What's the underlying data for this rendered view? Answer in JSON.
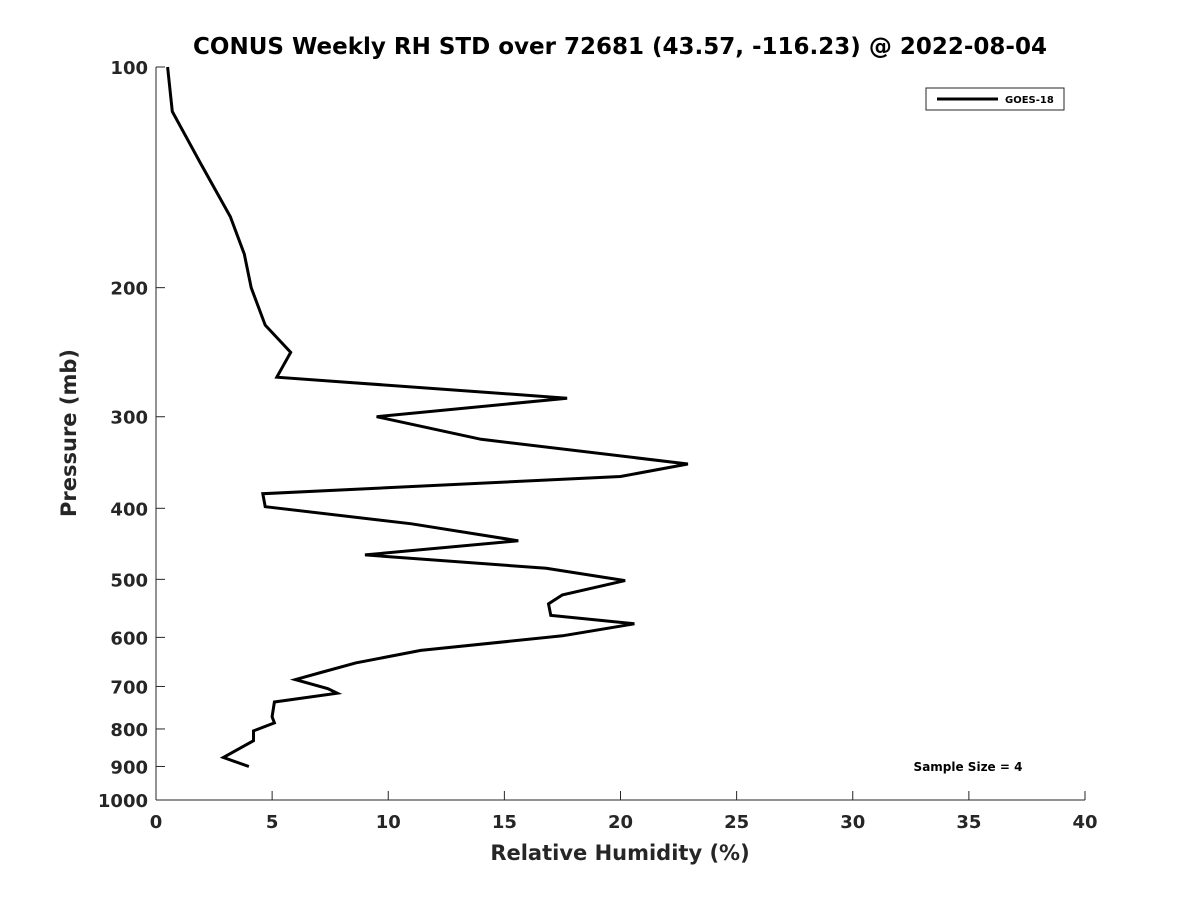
{
  "chart_data": {
    "type": "line",
    "title": "CONUS Weekly RH STD over 72681 (43.57, -116.23) @ 2022-08-04",
    "xlabel": "Relative Humidity (%)",
    "ylabel": "Pressure (mb)",
    "xlim": [
      0,
      40
    ],
    "ylim": [
      100,
      1000
    ],
    "y_scale": "log",
    "y_reversed": true,
    "x_ticks": [
      0,
      5,
      10,
      15,
      20,
      25,
      30,
      35,
      40
    ],
    "y_ticks": [
      100,
      200,
      300,
      400,
      500,
      600,
      700,
      800,
      900,
      1000
    ],
    "grid": false,
    "legend_position": "top-right",
    "series": [
      {
        "name": "GOES-18",
        "color": "#000000",
        "points": [
          [
            0.5,
            100
          ],
          [
            0.7,
            115
          ],
          [
            1.9,
            135
          ],
          [
            3.2,
            160
          ],
          [
            3.8,
            180
          ],
          [
            4.1,
            200
          ],
          [
            4.7,
            225
          ],
          [
            5.8,
            245
          ],
          [
            5.2,
            265
          ],
          [
            17.7,
            283
          ],
          [
            9.5,
            300
          ],
          [
            14.0,
            322
          ],
          [
            22.9,
            348
          ],
          [
            20.0,
            362
          ],
          [
            4.6,
            382
          ],
          [
            4.7,
            398
          ],
          [
            11.0,
            420
          ],
          [
            15.6,
            443
          ],
          [
            9.0,
            463
          ],
          [
            16.8,
            483
          ],
          [
            20.2,
            502
          ],
          [
            17.5,
            525
          ],
          [
            16.9,
            540
          ],
          [
            17.0,
            560
          ],
          [
            20.6,
            575
          ],
          [
            17.5,
            597
          ],
          [
            11.4,
            625
          ],
          [
            8.6,
            650
          ],
          [
            7.1,
            670
          ],
          [
            6.0,
            685
          ],
          [
            7.4,
            705
          ],
          [
            7.8,
            715
          ],
          [
            5.1,
            735
          ],
          [
            5.0,
            770
          ],
          [
            5.1,
            785
          ],
          [
            4.2,
            805
          ],
          [
            4.2,
            830
          ],
          [
            2.9,
            875
          ],
          [
            4.0,
            900
          ]
        ]
      }
    ],
    "annotations": [
      "Sample Size = 4"
    ]
  }
}
